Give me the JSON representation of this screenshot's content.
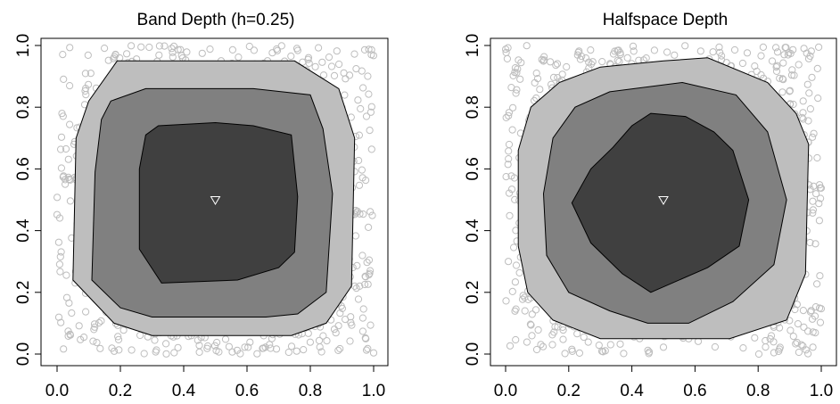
{
  "colors": {
    "background": "#ffffff",
    "points": "#bdbdbd",
    "region_outer": "#bebebe",
    "region_middle": "#808080",
    "region_inner": "#404040",
    "region_outline": "#000000",
    "center_marker": "#ffffff"
  },
  "chart_data": [
    {
      "type": "scatter",
      "title": "Band Depth (h=0.25)",
      "xlim": [
        0,
        1
      ],
      "ylim": [
        0,
        1
      ],
      "x_ticks": [
        "0.0",
        "0.2",
        "0.4",
        "0.6",
        "0.8",
        "1.0"
      ],
      "y_ticks": [
        "0.0",
        "0.2",
        "0.4",
        "0.6",
        "0.8",
        "1.0"
      ],
      "grid": false,
      "points": "uniform random sample on [0,1]x[0,1], approx 1000 points, open grey circles",
      "center": [
        0.5,
        0.5
      ],
      "center_marker": "open triangle pointing down",
      "depth_regions": [
        {
          "level": "outer",
          "polygon": [
            [
              0.19,
              0.95
            ],
            [
              0.75,
              0.95
            ],
            [
              0.89,
              0.86
            ],
            [
              0.94,
              0.7
            ],
            [
              0.93,
              0.22
            ],
            [
              0.85,
              0.1
            ],
            [
              0.74,
              0.06
            ],
            [
              0.3,
              0.06
            ],
            [
              0.18,
              0.1
            ],
            [
              0.05,
              0.24
            ],
            [
              0.06,
              0.7
            ],
            [
              0.1,
              0.82
            ]
          ]
        },
        {
          "level": "middle",
          "polygon": [
            [
              0.28,
              0.86
            ],
            [
              0.62,
              0.86
            ],
            [
              0.8,
              0.84
            ],
            [
              0.84,
              0.73
            ],
            [
              0.87,
              0.52
            ],
            [
              0.85,
              0.2
            ],
            [
              0.76,
              0.13
            ],
            [
              0.66,
              0.12
            ],
            [
              0.3,
              0.12
            ],
            [
              0.2,
              0.15
            ],
            [
              0.11,
              0.24
            ],
            [
              0.12,
              0.59
            ],
            [
              0.14,
              0.76
            ],
            [
              0.17,
              0.82
            ]
          ]
        },
        {
          "level": "inner",
          "polygon": [
            [
              0.32,
              0.74
            ],
            [
              0.5,
              0.75
            ],
            [
              0.62,
              0.74
            ],
            [
              0.74,
              0.71
            ],
            [
              0.76,
              0.51
            ],
            [
              0.75,
              0.33
            ],
            [
              0.7,
              0.28
            ],
            [
              0.57,
              0.24
            ],
            [
              0.33,
              0.23
            ],
            [
              0.26,
              0.34
            ],
            [
              0.26,
              0.6
            ],
            [
              0.28,
              0.71
            ]
          ]
        }
      ]
    },
    {
      "type": "scatter",
      "title": "Halfspace Depth",
      "xlim": [
        0,
        1
      ],
      "ylim": [
        0,
        1
      ],
      "x_ticks": [
        "0.0",
        "0.2",
        "0.4",
        "0.6",
        "0.8",
        "1.0"
      ],
      "y_ticks": [
        "0.0",
        "0.2",
        "0.4",
        "0.6",
        "0.8",
        "1.0"
      ],
      "grid": false,
      "points": "uniform random sample on [0,1]x[0,1], approx 1000 points, open grey circles",
      "center": [
        0.5,
        0.5
      ],
      "center_marker": "open triangle pointing down",
      "depth_regions": [
        {
          "level": "outer",
          "polygon": [
            [
              0.3,
              0.93
            ],
            [
              0.5,
              0.95
            ],
            [
              0.64,
              0.96
            ],
            [
              0.83,
              0.88
            ],
            [
              0.92,
              0.78
            ],
            [
              0.96,
              0.68
            ],
            [
              0.95,
              0.26
            ],
            [
              0.89,
              0.11
            ],
            [
              0.71,
              0.05
            ],
            [
              0.3,
              0.05
            ],
            [
              0.15,
              0.11
            ],
            [
              0.07,
              0.2
            ],
            [
              0.04,
              0.35
            ],
            [
              0.04,
              0.66
            ],
            [
              0.08,
              0.8
            ],
            [
              0.17,
              0.88
            ]
          ]
        },
        {
          "level": "middle",
          "polygon": [
            [
              0.33,
              0.85
            ],
            [
              0.56,
              0.88
            ],
            [
              0.73,
              0.84
            ],
            [
              0.83,
              0.72
            ],
            [
              0.89,
              0.5
            ],
            [
              0.85,
              0.29
            ],
            [
              0.72,
              0.17
            ],
            [
              0.58,
              0.1
            ],
            [
              0.45,
              0.1
            ],
            [
              0.33,
              0.14
            ],
            [
              0.2,
              0.2
            ],
            [
              0.13,
              0.32
            ],
            [
              0.12,
              0.52
            ],
            [
              0.15,
              0.7
            ],
            [
              0.22,
              0.8
            ]
          ]
        },
        {
          "level": "inner",
          "polygon": [
            [
              0.46,
              0.78
            ],
            [
              0.57,
              0.77
            ],
            [
              0.66,
              0.72
            ],
            [
              0.72,
              0.66
            ],
            [
              0.77,
              0.5
            ],
            [
              0.74,
              0.35
            ],
            [
              0.64,
              0.28
            ],
            [
              0.46,
              0.2
            ],
            [
              0.37,
              0.26
            ],
            [
              0.27,
              0.36
            ],
            [
              0.21,
              0.49
            ],
            [
              0.27,
              0.6
            ],
            [
              0.34,
              0.67
            ],
            [
              0.4,
              0.74
            ]
          ]
        }
      ]
    }
  ]
}
